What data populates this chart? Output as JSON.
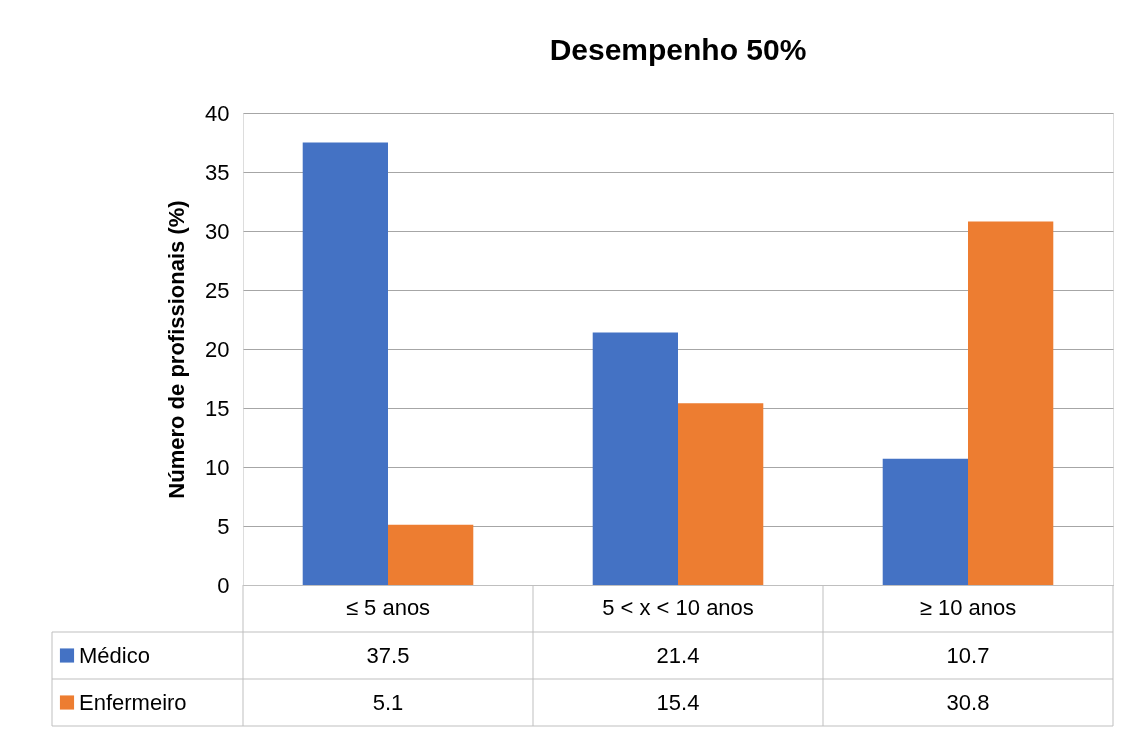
{
  "chart_data": {
    "type": "bar",
    "title": "Desempenho 50%",
    "ylabel": "Número de profissionais (%)",
    "categories": [
      "≤ 5 anos",
      "5 < x < 10 anos",
      "≥ 10 anos"
    ],
    "series": [
      {
        "name": "Médico",
        "color": "#4472c4",
        "values": [
          37.5,
          21.4,
          10.7
        ]
      },
      {
        "name": "Enfermeiro",
        "color": "#ed7d31",
        "values": [
          5.1,
          15.4,
          30.8
        ]
      }
    ],
    "ylim": [
      0,
      40
    ],
    "yticks": [
      0,
      5,
      10,
      15,
      20,
      25,
      30,
      35,
      40
    ],
    "grid": "y",
    "legend": "bottom",
    "data_labels": true
  }
}
